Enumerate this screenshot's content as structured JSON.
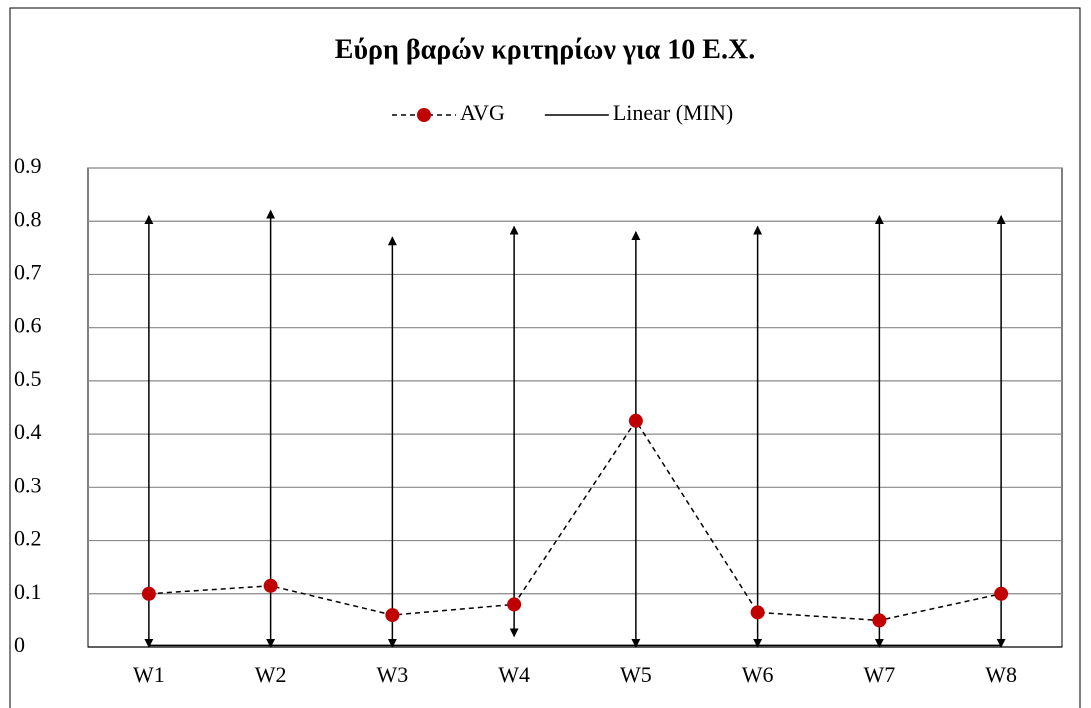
{
  "chart_data": {
    "type": "line",
    "title": "Εύρη βαρών κριτηρίων για 10 Ε.Χ.",
    "categories": [
      "W1",
      "W2",
      "W3",
      "W4",
      "W5",
      "W6",
      "W7",
      "W8"
    ],
    "series": [
      {
        "name": "AVG",
        "color": "#c00000",
        "dash": true,
        "values": [
          0.1,
          0.115,
          0.06,
          0.08,
          0.425,
          0.065,
          0.05,
          0.1
        ]
      },
      {
        "name": "Linear (MIN)",
        "color": "#000000",
        "dash": false,
        "values": [
          0.003,
          0.003,
          0.003,
          0.003,
          0.003,
          0.003,
          0.003,
          0.003
        ]
      }
    ],
    "range": {
      "low": [
        0,
        0,
        0,
        0.02,
        0,
        0,
        0,
        0
      ],
      "high": [
        0.81,
        0.82,
        0.77,
        0.79,
        0.78,
        0.79,
        0.81,
        0.81
      ]
    },
    "ylim": [
      0,
      0.9
    ],
    "yticks": [
      0,
      0.1,
      0.2,
      0.3,
      0.4,
      0.5,
      0.6,
      0.7,
      0.8,
      0.9
    ],
    "grid": true,
    "legend": "top"
  }
}
